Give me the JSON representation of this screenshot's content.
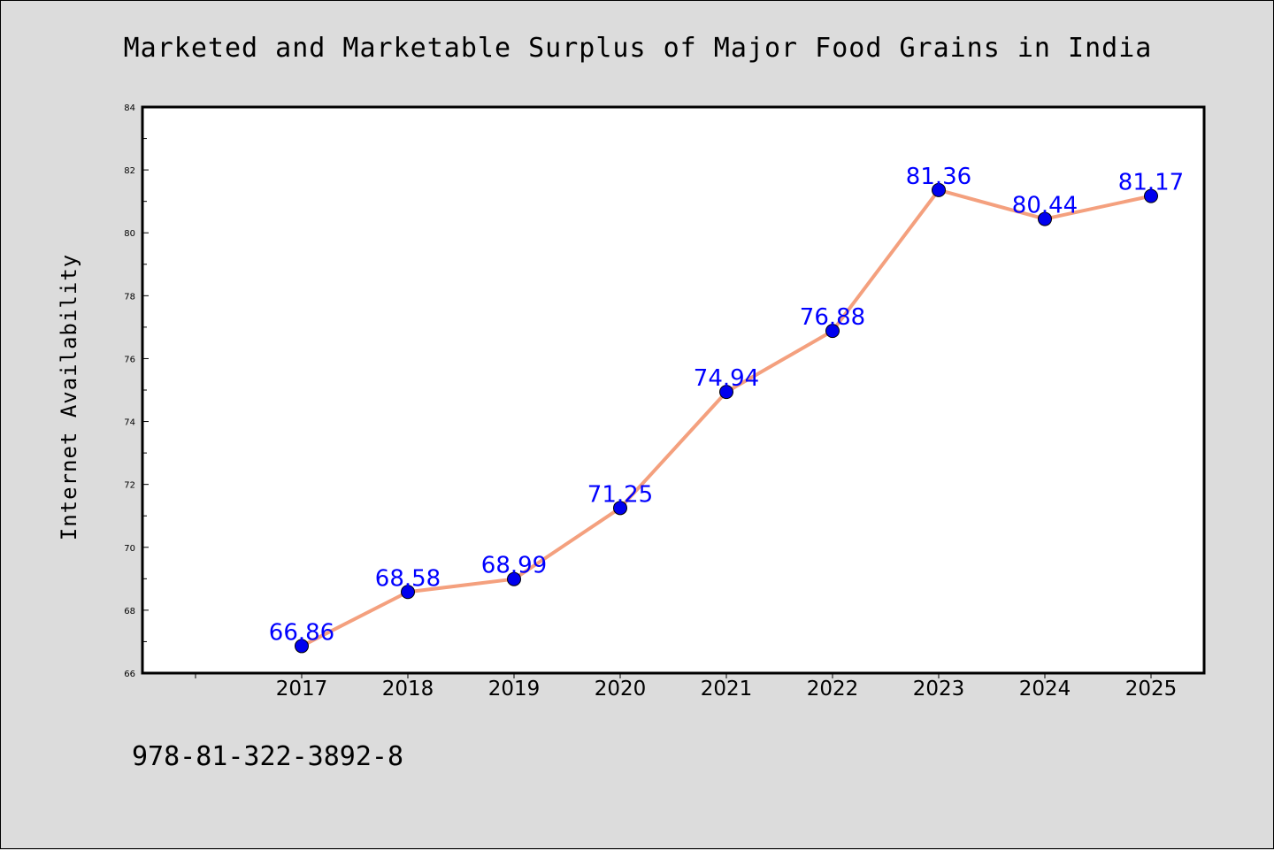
{
  "colors": {
    "background": "#dcdcdc",
    "plot_background": "#ffffff",
    "line": "#f4a07e",
    "marker": "#0000ee",
    "data_label": "#0000ff"
  },
  "footer_text": "978-81-322-3892-8",
  "chart_data": {
    "type": "line",
    "title": "Marketed and Marketable Surplus of Major Food Grains in India",
    "xlabel": "",
    "ylabel": "Internet Availability",
    "categories": [
      "2017",
      "2018",
      "2019",
      "2020",
      "2021",
      "2022",
      "2023",
      "2024",
      "2025"
    ],
    "series": [
      {
        "values": [
          66.86,
          68.58,
          68.99,
          71.25,
          74.94,
          76.88,
          81.36,
          80.44,
          81.17
        ],
        "labels": [
          "66.86",
          "68.58",
          "68.99",
          "71.25",
          "74.94",
          "76.88",
          "81.36",
          "80.44",
          "81.17"
        ]
      }
    ],
    "ylim": [
      66,
      84
    ],
    "yticks": [
      "66",
      "68",
      "70",
      "72",
      "74",
      "76",
      "78",
      "80",
      "82",
      "84"
    ],
    "grid": false,
    "legend": "none"
  }
}
